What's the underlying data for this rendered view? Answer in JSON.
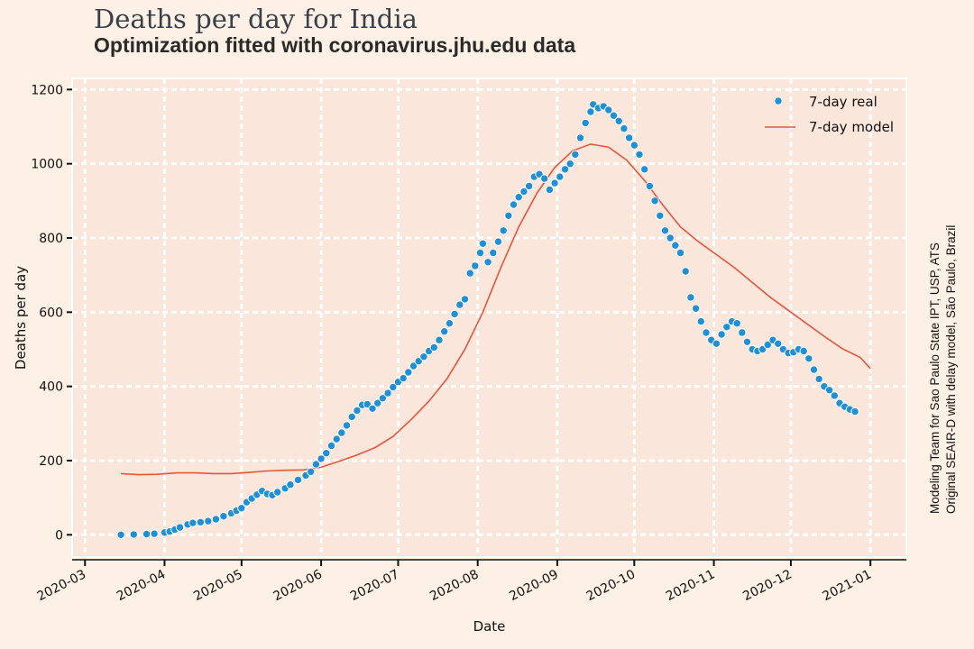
{
  "title": "Deaths per day for India",
  "subtitle": "Optimization fitted with coronavirus.jhu.edu data",
  "side_note": [
    "Modeling Team for Sao Paulo State IPT, USP, ATS",
    "Original SEAIR-D with delay model, São Paulo, Brazil"
  ],
  "colors": {
    "background": "#fdf1e6",
    "plot_background": "#fae6da",
    "grid": "#ffffff",
    "real_series": "#1f8fd6",
    "model_series": "#e8553c"
  },
  "chart_data": {
    "type": "scatter",
    "title": "Deaths per day for India",
    "subtitle": "Optimization fitted with coronavirus.jhu.edu data",
    "xlabel": "Date",
    "ylabel": "Deaths per day",
    "x_type": "date",
    "xlim": [
      "2020-02-25",
      "2021-01-15"
    ],
    "ylim": [
      -60,
      1230
    ],
    "x_ticks": [
      "2020-03",
      "2020-04",
      "2020-05",
      "2020-06",
      "2020-07",
      "2020-08",
      "2020-09",
      "2020-10",
      "2020-11",
      "2020-12",
      "2021-01"
    ],
    "y_ticks": [
      0,
      200,
      400,
      600,
      800,
      1000,
      1200
    ],
    "grid": true,
    "legend_position": "top-right",
    "series": [
      {
        "name": "7-day real",
        "type": "scatter",
        "points": [
          [
            "2020-03-15",
            0
          ],
          [
            "2020-03-20",
            1
          ],
          [
            "2020-03-25",
            2
          ],
          [
            "2020-03-28",
            3
          ],
          [
            "2020-04-01",
            6
          ],
          [
            "2020-04-03",
            9
          ],
          [
            "2020-04-05",
            14
          ],
          [
            "2020-04-07",
            20
          ],
          [
            "2020-04-10",
            28
          ],
          [
            "2020-04-12",
            32
          ],
          [
            "2020-04-15",
            34
          ],
          [
            "2020-04-18",
            37
          ],
          [
            "2020-04-21",
            42
          ],
          [
            "2020-04-24",
            50
          ],
          [
            "2020-04-27",
            58
          ],
          [
            "2020-04-29",
            65
          ],
          [
            "2020-05-01",
            72
          ],
          [
            "2020-05-03",
            88
          ],
          [
            "2020-05-05",
            98
          ],
          [
            "2020-05-07",
            108
          ],
          [
            "2020-05-09",
            118
          ],
          [
            "2020-05-11",
            110
          ],
          [
            "2020-05-13",
            107
          ],
          [
            "2020-05-15",
            115
          ],
          [
            "2020-05-18",
            125
          ],
          [
            "2020-05-20",
            135
          ],
          [
            "2020-05-23",
            148
          ],
          [
            "2020-05-26",
            160
          ],
          [
            "2020-05-28",
            170
          ],
          [
            "2020-05-30",
            190
          ],
          [
            "2020-06-01",
            205
          ],
          [
            "2020-06-03",
            220
          ],
          [
            "2020-06-05",
            240
          ],
          [
            "2020-06-07",
            258
          ],
          [
            "2020-06-09",
            275
          ],
          [
            "2020-06-11",
            295
          ],
          [
            "2020-06-13",
            318
          ],
          [
            "2020-06-15",
            335
          ],
          [
            "2020-06-17",
            350
          ],
          [
            "2020-06-19",
            352
          ],
          [
            "2020-06-21",
            340
          ],
          [
            "2020-06-23",
            355
          ],
          [
            "2020-06-25",
            368
          ],
          [
            "2020-06-27",
            382
          ],
          [
            "2020-06-29",
            398
          ],
          [
            "2020-07-01",
            412
          ],
          [
            "2020-07-03",
            422
          ],
          [
            "2020-07-05",
            438
          ],
          [
            "2020-07-07",
            455
          ],
          [
            "2020-07-09",
            468
          ],
          [
            "2020-07-11",
            480
          ],
          [
            "2020-07-13",
            495
          ],
          [
            "2020-07-15",
            505
          ],
          [
            "2020-07-17",
            525
          ],
          [
            "2020-07-19",
            548
          ],
          [
            "2020-07-21",
            570
          ],
          [
            "2020-07-23",
            595
          ],
          [
            "2020-07-25",
            620
          ],
          [
            "2020-07-27",
            635
          ],
          [
            "2020-07-29",
            705
          ],
          [
            "2020-07-31",
            725
          ],
          [
            "2020-08-02",
            760
          ],
          [
            "2020-08-03",
            785
          ],
          [
            "2020-08-05",
            735
          ],
          [
            "2020-08-07",
            760
          ],
          [
            "2020-08-09",
            790
          ],
          [
            "2020-08-11",
            820
          ],
          [
            "2020-08-13",
            860
          ],
          [
            "2020-08-15",
            890
          ],
          [
            "2020-08-17",
            910
          ],
          [
            "2020-08-19",
            925
          ],
          [
            "2020-08-21",
            940
          ],
          [
            "2020-08-23",
            965
          ],
          [
            "2020-08-25",
            972
          ],
          [
            "2020-08-27",
            960
          ],
          [
            "2020-08-29",
            930
          ],
          [
            "2020-08-31",
            948
          ],
          [
            "2020-09-02",
            965
          ],
          [
            "2020-09-04",
            985
          ],
          [
            "2020-09-06",
            1000
          ],
          [
            "2020-09-08",
            1025
          ],
          [
            "2020-09-10",
            1070
          ],
          [
            "2020-09-12",
            1110
          ],
          [
            "2020-09-14",
            1140
          ],
          [
            "2020-09-15",
            1160
          ],
          [
            "2020-09-17",
            1150
          ],
          [
            "2020-09-19",
            1155
          ],
          [
            "2020-09-21",
            1145
          ],
          [
            "2020-09-23",
            1130
          ],
          [
            "2020-09-25",
            1115
          ],
          [
            "2020-09-27",
            1095
          ],
          [
            "2020-09-29",
            1070
          ],
          [
            "2020-10-01",
            1050
          ],
          [
            "2020-10-03",
            1025
          ],
          [
            "2020-10-05",
            985
          ],
          [
            "2020-10-07",
            940
          ],
          [
            "2020-10-09",
            900
          ],
          [
            "2020-10-11",
            860
          ],
          [
            "2020-10-13",
            820
          ],
          [
            "2020-10-15",
            800
          ],
          [
            "2020-10-17",
            780
          ],
          [
            "2020-10-19",
            760
          ],
          [
            "2020-10-21",
            710
          ],
          [
            "2020-10-23",
            640
          ],
          [
            "2020-10-25",
            610
          ],
          [
            "2020-10-27",
            575
          ],
          [
            "2020-10-29",
            545
          ],
          [
            "2020-10-31",
            525
          ],
          [
            "2020-11-02",
            515
          ],
          [
            "2020-11-04",
            540
          ],
          [
            "2020-11-06",
            560
          ],
          [
            "2020-11-08",
            575
          ],
          [
            "2020-11-10",
            570
          ],
          [
            "2020-11-12",
            545
          ],
          [
            "2020-11-14",
            520
          ],
          [
            "2020-11-16",
            500
          ],
          [
            "2020-11-18",
            495
          ],
          [
            "2020-11-20",
            500
          ],
          [
            "2020-11-22",
            512
          ],
          [
            "2020-11-24",
            525
          ],
          [
            "2020-11-26",
            515
          ],
          [
            "2020-11-28",
            500
          ],
          [
            "2020-11-30",
            490
          ],
          [
            "2020-12-02",
            492
          ],
          [
            "2020-12-04",
            500
          ],
          [
            "2020-12-06",
            495
          ],
          [
            "2020-12-08",
            475
          ],
          [
            "2020-12-10",
            445
          ],
          [
            "2020-12-12",
            420
          ],
          [
            "2020-12-14",
            400
          ],
          [
            "2020-12-16",
            390
          ],
          [
            "2020-12-18",
            375
          ],
          [
            "2020-12-20",
            355
          ],
          [
            "2020-12-22",
            345
          ],
          [
            "2020-12-24",
            338
          ],
          [
            "2020-12-26",
            332
          ]
        ]
      },
      {
        "name": "7-day model",
        "type": "line",
        "points": [
          [
            "2020-03-15",
            165
          ],
          [
            "2020-03-22",
            162
          ],
          [
            "2020-03-29",
            163
          ],
          [
            "2020-04-06",
            167
          ],
          [
            "2020-04-13",
            167
          ],
          [
            "2020-04-20",
            165
          ],
          [
            "2020-04-27",
            165
          ],
          [
            "2020-05-04",
            168
          ],
          [
            "2020-05-11",
            172
          ],
          [
            "2020-05-18",
            174
          ],
          [
            "2020-05-25",
            175
          ],
          [
            "2020-06-01",
            182
          ],
          [
            "2020-06-08",
            198
          ],
          [
            "2020-06-15",
            215
          ],
          [
            "2020-06-22",
            235
          ],
          [
            "2020-06-29",
            265
          ],
          [
            "2020-07-06",
            310
          ],
          [
            "2020-07-13",
            360
          ],
          [
            "2020-07-20",
            420
          ],
          [
            "2020-07-27",
            500
          ],
          [
            "2020-08-03",
            600
          ],
          [
            "2020-08-10",
            720
          ],
          [
            "2020-08-17",
            830
          ],
          [
            "2020-08-24",
            920
          ],
          [
            "2020-08-31",
            990
          ],
          [
            "2020-09-07",
            1035
          ],
          [
            "2020-09-14",
            1053
          ],
          [
            "2020-09-21",
            1045
          ],
          [
            "2020-09-28",
            1010
          ],
          [
            "2020-10-05",
            955
          ],
          [
            "2020-10-12",
            890
          ],
          [
            "2020-10-19",
            830
          ],
          [
            "2020-10-26",
            790
          ],
          [
            "2020-11-02",
            755
          ],
          [
            "2020-11-09",
            720
          ],
          [
            "2020-11-16",
            680
          ],
          [
            "2020-11-23",
            640
          ],
          [
            "2020-11-30",
            605
          ],
          [
            "2020-12-07",
            570
          ],
          [
            "2020-12-14",
            535
          ],
          [
            "2020-12-21",
            502
          ],
          [
            "2020-12-28",
            478
          ],
          [
            "2021-01-01",
            448
          ]
        ]
      }
    ]
  }
}
